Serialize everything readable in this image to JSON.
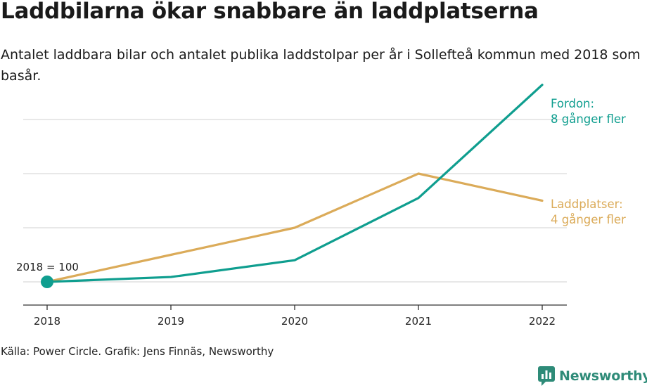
{
  "header": {
    "title": "Laddbilarna ökar snabbare än laddplatserna",
    "subtitle": "Antalet laddbara bilar och antalet publika laddstolpar per år i Sollefteå kommun med 2018 som basår."
  },
  "chart_data": {
    "type": "line",
    "title": "Laddbilarna ökar snabbare än laddplatserna",
    "xlabel": "",
    "ylabel": "",
    "categories": [
      "2018",
      "2019",
      "2020",
      "2021",
      "2022"
    ],
    "ylim": [
      0,
      850
    ],
    "gridlines": [
      100,
      300,
      500,
      700
    ],
    "series": [
      {
        "name": "Laddplatser",
        "label_line1": "Laddplatser:",
        "label_line2": "4 gånger fler",
        "color": "#dbab59",
        "values": [
          100,
          200,
          300,
          500,
          400
        ]
      },
      {
        "name": "Fordon",
        "label_line1": "Fordon:",
        "label_line2": "8 gånger fler",
        "color": "#0f9e8f",
        "values": [
          100,
          118,
          180,
          410,
          828
        ]
      }
    ],
    "annotation": "2018 = 100"
  },
  "footer": {
    "source": "Källa: Power Circle. Grafik: Jens Finnäs, Newsworthy",
    "brand": "Newsworthy"
  },
  "colors": {
    "fordon": "#0f9e8f",
    "laddplatser": "#dbab59",
    "grid": "#d9d9d9",
    "axis": "#333333",
    "brand": "#2e8b78"
  }
}
